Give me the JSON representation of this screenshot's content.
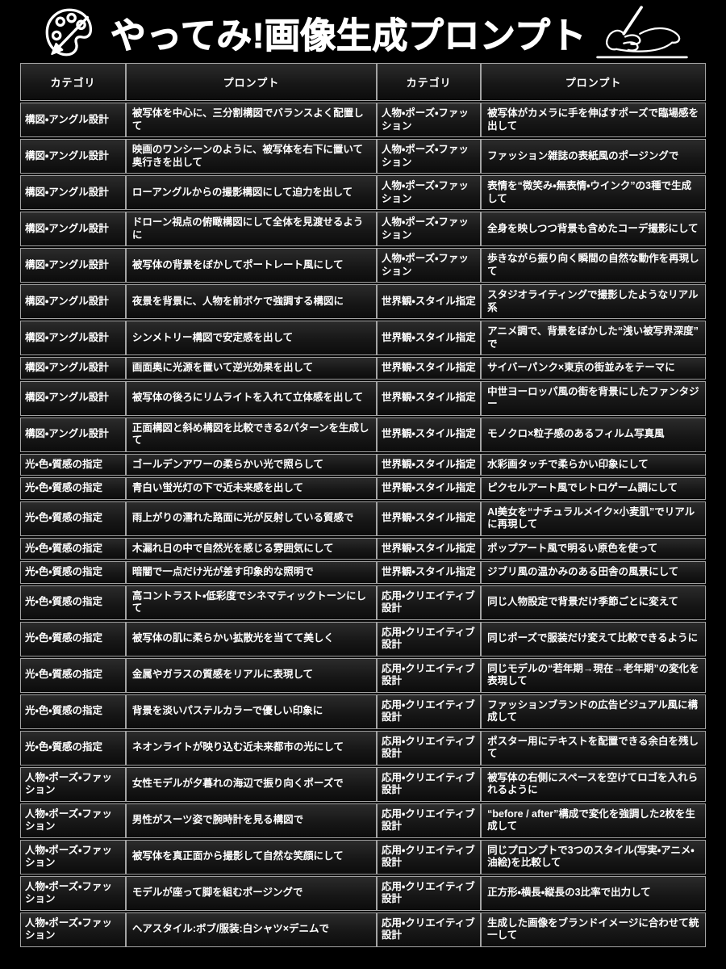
{
  "title": "やってみ!画像生成プロンプト",
  "icons": {
    "left": "palette-icon",
    "right": "writing-hand-icon"
  },
  "colors": {
    "background": "#000000",
    "cell_gradient_top": "#2b2b2b",
    "cell_gradient_bottom": "#0c0c0c",
    "border": "#a3a3a3",
    "text": "#ffffff"
  },
  "table": {
    "headers": [
      "カテゴリ",
      "プロンプト",
      "カテゴリ",
      "プロンプト"
    ],
    "rows": [
      [
        "構図・アングル設計",
        "被写体を中心に、三分割構図でバランスよく配置して",
        "人物・ポーズ・ファッション",
        "被写体がカメラに手を伸ばすポーズで臨場感を出して"
      ],
      [
        "構図・アングル設計",
        "映画のワンシーンのように、被写体を右下に置いて奥行きを出して",
        "人物・ポーズ・ファッション",
        "ファッション雑誌の表紙風のポージングで"
      ],
      [
        "構図・アングル設計",
        "ローアングルからの撮影構図にして迫力を出して",
        "人物・ポーズ・ファッション",
        "表情を“微笑み・無表情・ウインク”の3種で生成して"
      ],
      [
        "構図・アングル設計",
        "ドローン視点の俯瞰構図にして全体を見渡せるように",
        "人物・ポーズ・ファッション",
        "全身を映しつつ背景も含めたコーデ撮影にして"
      ],
      [
        "構図・アングル設計",
        "被写体の背景をぼかしてポートレート風にして",
        "人物・ポーズ・ファッション",
        "歩きながら振り向く瞬間の自然な動作を再現して"
      ],
      [
        "構図・アングル設計",
        "夜景を背景に、人物を前ボケで強調する構図に",
        "世界観・スタイル指定",
        "スタジオライティングで撮影したようなリアル系"
      ],
      [
        "構図・アングル設計",
        "シンメトリー構図で安定感を出して",
        "世界観・スタイル指定",
        "アニメ調で、背景をぼかした“浅い被写界深度”で"
      ],
      [
        "構図・アングル設計",
        "画面奥に光源を置いて逆光効果を出して",
        "世界観・スタイル指定",
        "サイバーパンク×東京の街並みをテーマに"
      ],
      [
        "構図・アングル設計",
        "被写体の後ろにリムライトを入れて立体感を出して",
        "世界観・スタイル指定",
        "中世ヨーロッパ風の街を背景にしたファンタジー"
      ],
      [
        "構図・アングル設計",
        "正面構図と斜め構図を比較できる2パターンを生成して",
        "世界観・スタイル指定",
        "モノクロ×粒子感のあるフィルム写真風"
      ],
      [
        "光・色・質感の指定",
        "ゴールデンアワーの柔らかい光で照らして",
        "世界観・スタイル指定",
        "水彩画タッチで柔らかい印象にして"
      ],
      [
        "光・色・質感の指定",
        "青白い蛍光灯の下で近未来感を出して",
        "世界観・スタイル指定",
        "ピクセルアート風でレトロゲーム調にして"
      ],
      [
        "光・色・質感の指定",
        "雨上がりの濡れた路面に光が反射している質感で",
        "世界観・スタイル指定",
        "AI美女を“ナチュラルメイク×小麦肌”でリアルに再現して"
      ],
      [
        "光・色・質感の指定",
        "木漏れ日の中で自然光を感じる雰囲気にして",
        "世界観・スタイル指定",
        "ポップアート風で明るい原色を使って"
      ],
      [
        "光・色・質感の指定",
        "暗闇で一点だけ光が差す印象的な照明で",
        "世界観・スタイル指定",
        "ジブリ風の温かみのある田舎の風景にして"
      ],
      [
        "光・色・質感の指定",
        "高コントラスト・低彩度でシネマティックトーンにして",
        "応用・クリエイティブ設計",
        "同じ人物設定で背景だけ季節ごとに変えて"
      ],
      [
        "光・色・質感の指定",
        "被写体の肌に柔らかい拡散光を当てて美しく",
        "応用・クリエイティブ設計",
        "同じポーズで服装だけ変えて比較できるように"
      ],
      [
        "光・色・質感の指定",
        "金属やガラスの質感をリアルに表現して",
        "応用・クリエイティブ設計",
        "同じモデルの“若年期→現在→老年期”の変化を表現して"
      ],
      [
        "光・色・質感の指定",
        "背景を淡いパステルカラーで優しい印象に",
        "応用・クリエイティブ設計",
        "ファッションブランドの広告ビジュアル風に構成して"
      ],
      [
        "光・色・質感の指定",
        "ネオンライトが映り込む近未来都市の光にして",
        "応用・クリエイティブ設計",
        "ポスター用にテキストを配置できる余白を残して"
      ],
      [
        "人物・ポーズ・ファッション",
        "女性モデルが夕暮れの海辺で振り向くポーズで",
        "応用・クリエイティブ設計",
        "被写体の右側にスペースを空けてロゴを入れられるように"
      ],
      [
        "人物・ポーズ・ファッション",
        "男性がスーツ姿で腕時計を見る構図で",
        "応用・クリエイティブ設計",
        "“before / after”構成で変化を強調した2枚を生成して"
      ],
      [
        "人物・ポーズ・ファッション",
        "被写体を真正面から撮影して自然な笑顔にして",
        "応用・クリエイティブ設計",
        "同じプロンプトで3つのスタイル(写実・アニメ・油絵)を比較して"
      ],
      [
        "人物・ポーズ・ファッション",
        "モデルが座って脚を組むポージングで",
        "応用・クリエイティブ設計",
        "正方形・横長・縦長の3比率で出力して"
      ],
      [
        "人物・ポーズ・ファッション",
        "ヘアスタイル:ボブ/服装:白シャツ×デニムで",
        "応用・クリエイティブ設計",
        "生成した画像をブランドイメージに合わせて統一して"
      ]
    ]
  }
}
